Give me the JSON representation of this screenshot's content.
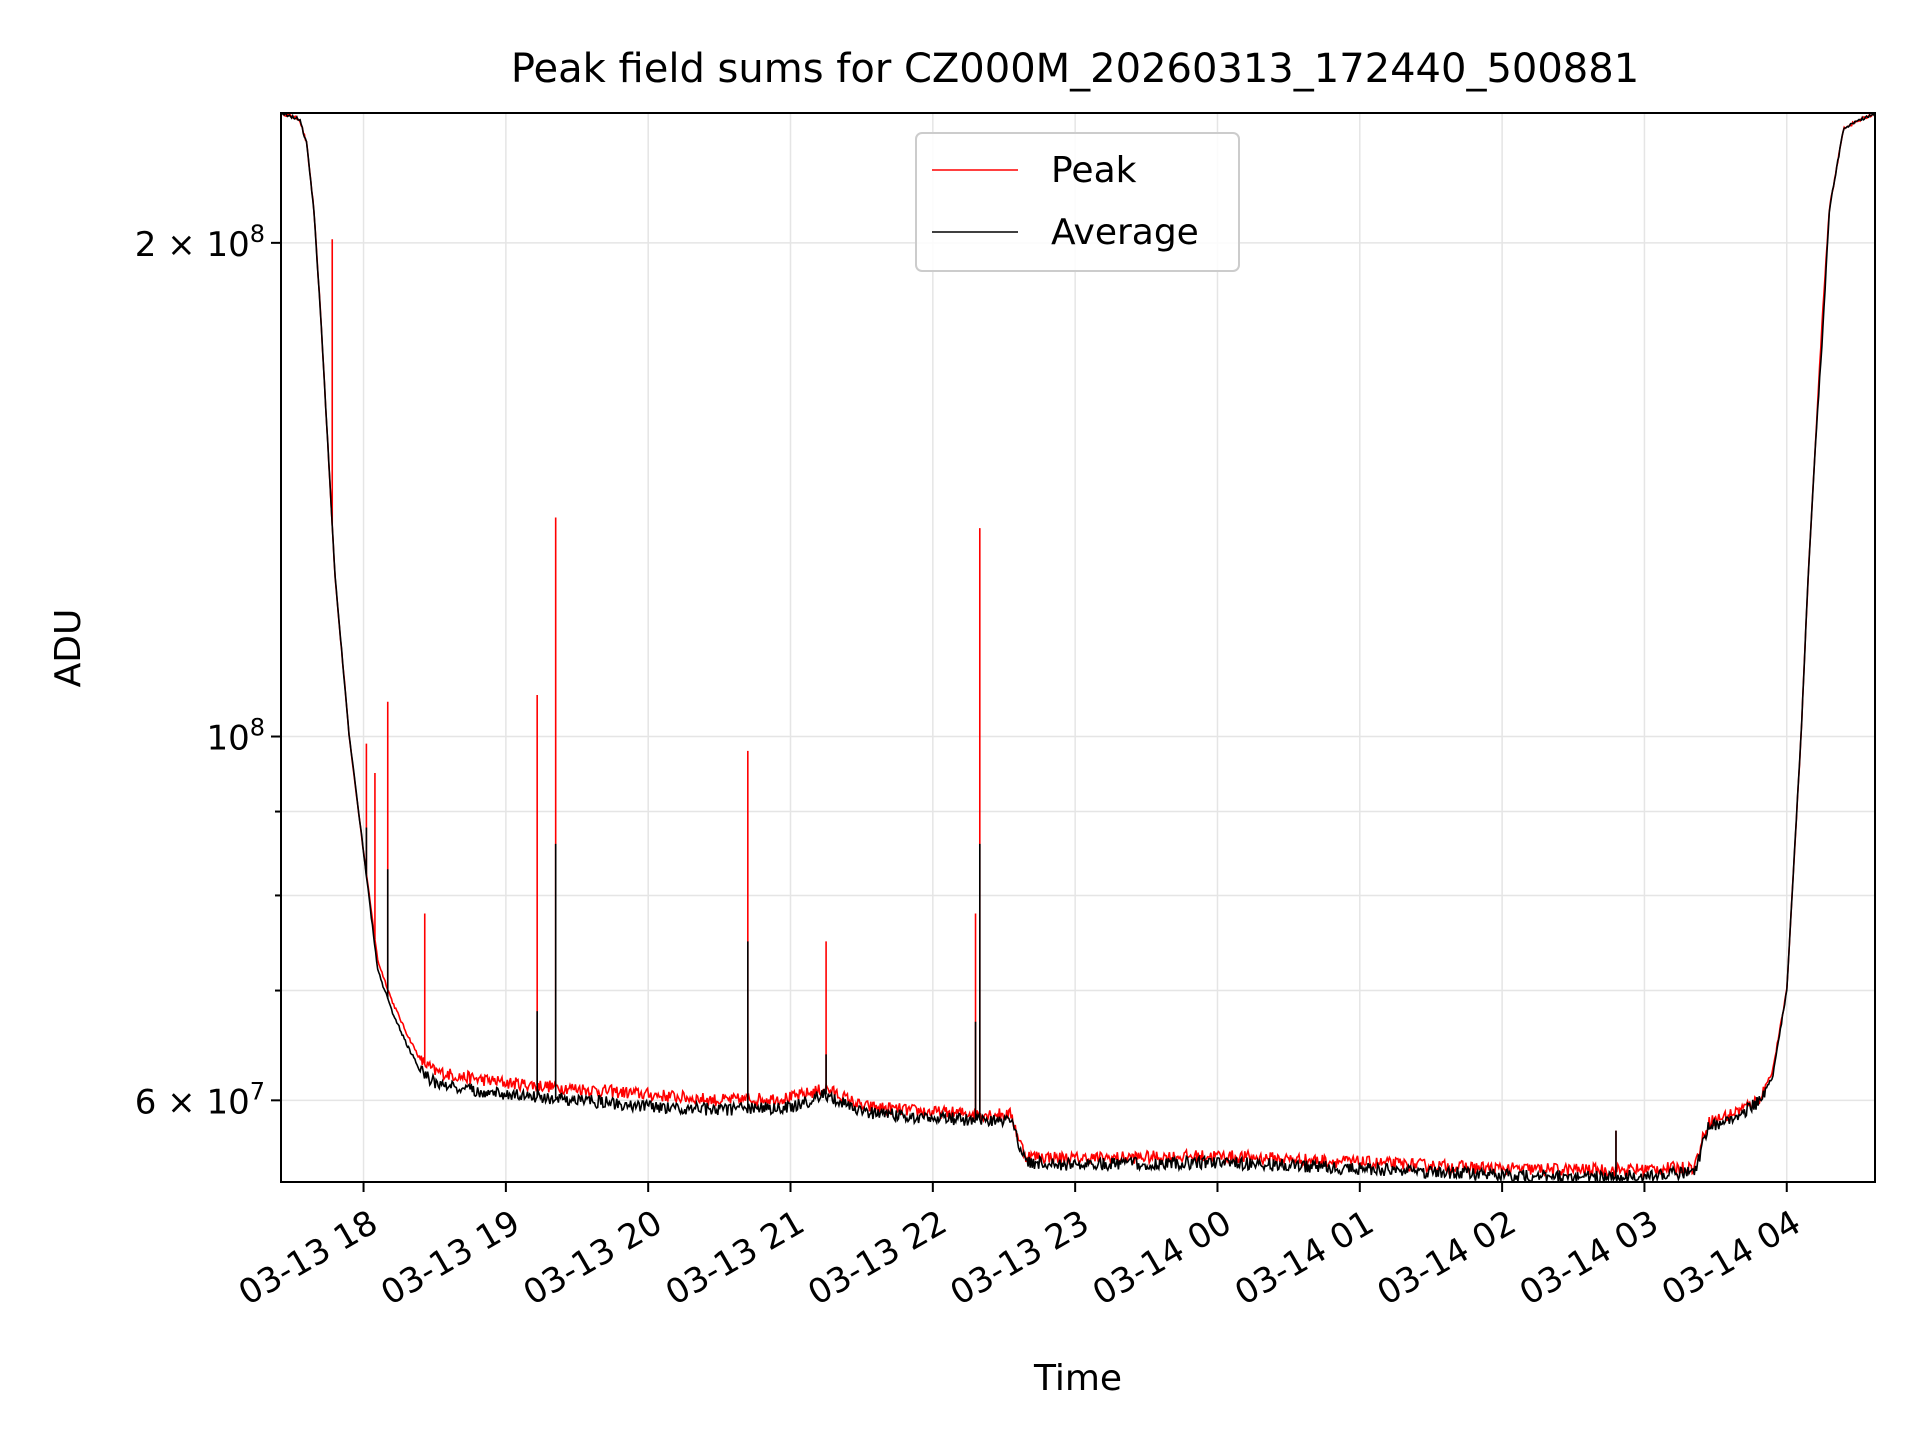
{
  "chart_data": {
    "type": "line",
    "title": "Peak field sums for CZ000M_20260313_172440_500881",
    "xlabel": "Time",
    "ylabel": "ADU",
    "yscale": "log",
    "ylim": [
      53500000,
      240000000
    ],
    "xlim_hours": [
      -0.58,
      10.62
    ],
    "grid": true,
    "legend_position": "top-center",
    "x_tick_hours": [
      0,
      1,
      2,
      3,
      4,
      5,
      6,
      7,
      8,
      9,
      10
    ],
    "x_tick_labels": [
      "03-13 18",
      "03-13 19",
      "03-13 20",
      "03-13 21",
      "03-13 22",
      "03-13 23",
      "03-14 00",
      "03-14 01",
      "03-14 02",
      "03-14 03",
      "03-14 04"
    ],
    "y_major_ticks": [
      {
        "value": 60000000,
        "label_base": "6 × 10",
        "label_exp": "7"
      },
      {
        "value": 100000000,
        "label_base": "10",
        "label_exp": "8"
      },
      {
        "value": 200000000,
        "label_base": "2 × 10",
        "label_exp": "8"
      }
    ],
    "y_minor_ticks": [
      70000000,
      80000000,
      90000000
    ],
    "series": [
      {
        "name": "Peak",
        "color": "#ff0000",
        "baseline": [
          {
            "x": -0.58,
            "y": 240000000
          },
          {
            "x": -0.45,
            "y": 238000000
          },
          {
            "x": -0.4,
            "y": 230000000
          },
          {
            "x": -0.35,
            "y": 210000000
          },
          {
            "x": -0.3,
            "y": 180000000
          },
          {
            "x": -0.25,
            "y": 150000000
          },
          {
            "x": -0.2,
            "y": 125000000
          },
          {
            "x": -0.1,
            "y": 100000000
          },
          {
            "x": 0.0,
            "y": 85000000
          },
          {
            "x": 0.1,
            "y": 73000000
          },
          {
            "x": 0.2,
            "y": 69000000
          },
          {
            "x": 0.3,
            "y": 66000000
          },
          {
            "x": 0.4,
            "y": 63500000
          },
          {
            "x": 0.5,
            "y": 62500000
          },
          {
            "x": 0.7,
            "y": 62000000
          },
          {
            "x": 1.0,
            "y": 61500000
          },
          {
            "x": 1.5,
            "y": 61000000
          },
          {
            "x": 2.0,
            "y": 60500000
          },
          {
            "x": 2.5,
            "y": 60000000
          },
          {
            "x": 3.0,
            "y": 60200000
          },
          {
            "x": 3.25,
            "y": 61000000
          },
          {
            "x": 3.5,
            "y": 59500000
          },
          {
            "x": 4.0,
            "y": 59000000
          },
          {
            "x": 4.55,
            "y": 58800000
          },
          {
            "x": 4.6,
            "y": 57000000
          },
          {
            "x": 4.65,
            "y": 55500000
          },
          {
            "x": 5.0,
            "y": 55300000
          },
          {
            "x": 6.0,
            "y": 55500000
          },
          {
            "x": 7.0,
            "y": 55000000
          },
          {
            "x": 8.0,
            "y": 54500000
          },
          {
            "x": 8.8,
            "y": 54400000
          },
          {
            "x": 9.35,
            "y": 54600000
          },
          {
            "x": 9.4,
            "y": 56500000
          },
          {
            "x": 9.45,
            "y": 58200000
          },
          {
            "x": 9.6,
            "y": 58800000
          },
          {
            "x": 9.8,
            "y": 60000000
          },
          {
            "x": 9.9,
            "y": 62500000
          },
          {
            "x": 10.0,
            "y": 70000000
          },
          {
            "x": 10.1,
            "y": 100000000
          },
          {
            "x": 10.15,
            "y": 125000000
          },
          {
            "x": 10.2,
            "y": 150000000
          },
          {
            "x": 10.25,
            "y": 180000000
          },
          {
            "x": 10.3,
            "y": 210000000
          },
          {
            "x": 10.4,
            "y": 235000000
          },
          {
            "x": 10.62,
            "y": 240000000
          }
        ],
        "spikes": [
          {
            "x": -0.22,
            "y": 201000000
          },
          {
            "x": 0.02,
            "y": 99000000
          },
          {
            "x": 0.08,
            "y": 95000000
          },
          {
            "x": 0.17,
            "y": 105000000
          },
          {
            "x": 0.43,
            "y": 78000000
          },
          {
            "x": 1.22,
            "y": 106000000
          },
          {
            "x": 1.35,
            "y": 136000000
          },
          {
            "x": 2.7,
            "y": 98000000
          },
          {
            "x": 3.25,
            "y": 75000000
          },
          {
            "x": 4.3,
            "y": 78000000
          },
          {
            "x": 4.33,
            "y": 134000000
          },
          {
            "x": 8.8,
            "y": 57500000
          }
        ]
      },
      {
        "name": "Average",
        "color": "#000000",
        "baseline": [
          {
            "x": -0.58,
            "y": 240000000
          },
          {
            "x": -0.45,
            "y": 238000000
          },
          {
            "x": -0.4,
            "y": 230000000
          },
          {
            "x": -0.35,
            "y": 210000000
          },
          {
            "x": -0.3,
            "y": 180000000
          },
          {
            "x": -0.25,
            "y": 150000000
          },
          {
            "x": -0.2,
            "y": 125000000
          },
          {
            "x": -0.1,
            "y": 100000000
          },
          {
            "x": 0.0,
            "y": 85000000
          },
          {
            "x": 0.1,
            "y": 72000000
          },
          {
            "x": 0.2,
            "y": 68000000
          },
          {
            "x": 0.3,
            "y": 65000000
          },
          {
            "x": 0.4,
            "y": 62500000
          },
          {
            "x": 0.5,
            "y": 61500000
          },
          {
            "x": 0.7,
            "y": 61000000
          },
          {
            "x": 1.0,
            "y": 60500000
          },
          {
            "x": 1.5,
            "y": 60000000
          },
          {
            "x": 2.0,
            "y": 59500000
          },
          {
            "x": 2.5,
            "y": 59200000
          },
          {
            "x": 3.0,
            "y": 59400000
          },
          {
            "x": 3.25,
            "y": 60500000
          },
          {
            "x": 3.5,
            "y": 59000000
          },
          {
            "x": 4.0,
            "y": 58500000
          },
          {
            "x": 4.55,
            "y": 58300000
          },
          {
            "x": 4.6,
            "y": 56500000
          },
          {
            "x": 4.65,
            "y": 55000000
          },
          {
            "x": 5.0,
            "y": 54800000
          },
          {
            "x": 6.0,
            "y": 55000000
          },
          {
            "x": 7.0,
            "y": 54500000
          },
          {
            "x": 8.0,
            "y": 54000000
          },
          {
            "x": 8.8,
            "y": 53900000
          },
          {
            "x": 9.35,
            "y": 54200000
          },
          {
            "x": 9.4,
            "y": 56000000
          },
          {
            "x": 9.45,
            "y": 57800000
          },
          {
            "x": 9.6,
            "y": 58400000
          },
          {
            "x": 9.8,
            "y": 59800000
          },
          {
            "x": 9.9,
            "y": 62000000
          },
          {
            "x": 10.0,
            "y": 70000000
          },
          {
            "x": 10.1,
            "y": 100000000
          },
          {
            "x": 10.15,
            "y": 125000000
          },
          {
            "x": 10.2,
            "y": 150000000
          },
          {
            "x": 10.25,
            "y": 175000000
          },
          {
            "x": 10.3,
            "y": 210000000
          },
          {
            "x": 10.4,
            "y": 235000000
          },
          {
            "x": 10.62,
            "y": 240000000
          }
        ],
        "spikes": [
          {
            "x": 0.02,
            "y": 88000000
          },
          {
            "x": 0.17,
            "y": 83000000
          },
          {
            "x": 1.22,
            "y": 68000000
          },
          {
            "x": 1.35,
            "y": 86000000
          },
          {
            "x": 2.7,
            "y": 75000000
          },
          {
            "x": 3.25,
            "y": 64000000
          },
          {
            "x": 4.3,
            "y": 67000000
          },
          {
            "x": 4.33,
            "y": 86000000
          },
          {
            "x": 8.8,
            "y": 57500000
          }
        ]
      }
    ]
  }
}
